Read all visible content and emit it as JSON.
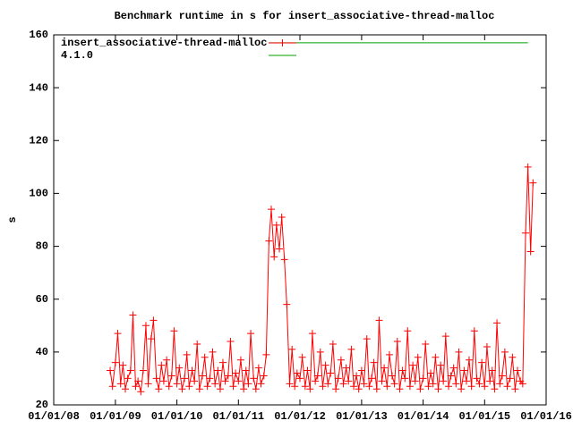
{
  "chart_data": {
    "type": "line",
    "title": "Benchmark runtime in s for insert_associative-thread-malloc",
    "ylabel": "s",
    "xlim": [
      "2008-01-01",
      "2016-01-01"
    ],
    "xticks": [
      {
        "value": "2008-01-01",
        "label": "01/01/08"
      },
      {
        "value": "2009-01-01",
        "label": "01/01/09"
      },
      {
        "value": "2010-01-01",
        "label": "01/01/10"
      },
      {
        "value": "2011-01-01",
        "label": "01/01/11"
      },
      {
        "value": "2012-01-01",
        "label": "01/01/12"
      },
      {
        "value": "2013-01-01",
        "label": "01/01/13"
      },
      {
        "value": "2014-01-01",
        "label": "01/01/14"
      },
      {
        "value": "2015-01-01",
        "label": "01/01/15"
      },
      {
        "value": "2016-01-01",
        "label": "01/01/16"
      }
    ],
    "ylim": [
      20,
      160
    ],
    "yticks": [
      20,
      40,
      60,
      80,
      100,
      120,
      140,
      160
    ],
    "grid": false,
    "legend": "top-left",
    "series": [
      {
        "name": "insert_associative-thread-malloc",
        "color": "#ff0000",
        "markers": true,
        "x": [
          "2008-12-01",
          "2008-12-15",
          "2009-01-01",
          "2009-01-15",
          "2009-02-01",
          "2009-02-15",
          "2009-03-01",
          "2009-03-15",
          "2009-04-01",
          "2009-04-15",
          "2009-05-01",
          "2009-05-15",
          "2009-06-01",
          "2009-06-15",
          "2009-07-01",
          "2009-07-15",
          "2009-08-01",
          "2009-08-15",
          "2009-09-01",
          "2009-09-15",
          "2009-10-01",
          "2009-10-15",
          "2009-11-01",
          "2009-11-15",
          "2009-12-01",
          "2009-12-15",
          "2010-01-01",
          "2010-01-15",
          "2010-02-01",
          "2010-02-15",
          "2010-03-01",
          "2010-03-15",
          "2010-04-01",
          "2010-04-15",
          "2010-05-01",
          "2010-05-15",
          "2010-06-01",
          "2010-06-15",
          "2010-07-01",
          "2010-07-15",
          "2010-08-01",
          "2010-08-15",
          "2010-09-01",
          "2010-09-15",
          "2010-10-01",
          "2010-10-15",
          "2010-11-01",
          "2010-11-15",
          "2010-12-01",
          "2010-12-15",
          "2011-01-01",
          "2011-01-15",
          "2011-02-01",
          "2011-02-15",
          "2011-03-01",
          "2011-03-15",
          "2011-04-01",
          "2011-04-15",
          "2011-05-01",
          "2011-05-15",
          "2011-06-01",
          "2011-06-15",
          "2011-07-01",
          "2011-07-15",
          "2011-08-01",
          "2011-08-15",
          "2011-09-01",
          "2011-09-15",
          "2011-10-01",
          "2011-10-15",
          "2011-11-01",
          "2011-11-15",
          "2011-12-01",
          "2011-12-15",
          "2012-01-01",
          "2012-01-15",
          "2012-02-01",
          "2012-02-15",
          "2012-03-01",
          "2012-03-15",
          "2012-04-01",
          "2012-04-15",
          "2012-05-01",
          "2012-05-15",
          "2012-06-01",
          "2012-06-15",
          "2012-07-01",
          "2012-07-15",
          "2012-08-01",
          "2012-08-15",
          "2012-09-01",
          "2012-09-15",
          "2012-10-01",
          "2012-10-15",
          "2012-11-01",
          "2012-11-15",
          "2012-12-01",
          "2012-12-15",
          "2013-01-01",
          "2013-01-15",
          "2013-02-01",
          "2013-02-15",
          "2013-03-01",
          "2013-03-15",
          "2013-04-01",
          "2013-04-15",
          "2013-05-01",
          "2013-05-15",
          "2013-06-01",
          "2013-06-15",
          "2013-07-01",
          "2013-07-15",
          "2013-08-01",
          "2013-08-15",
          "2013-09-01",
          "2013-09-15",
          "2013-10-01",
          "2013-10-15",
          "2013-11-01",
          "2013-11-15",
          "2013-12-01",
          "2013-12-15",
          "2014-01-01",
          "2014-01-15",
          "2014-02-01",
          "2014-02-15",
          "2014-03-01",
          "2014-03-15",
          "2014-04-01",
          "2014-04-15",
          "2014-05-01",
          "2014-05-15",
          "2014-06-01",
          "2014-06-15",
          "2014-07-01",
          "2014-07-15",
          "2014-08-01",
          "2014-08-15",
          "2014-09-01",
          "2014-09-15",
          "2014-10-01",
          "2014-10-15",
          "2014-11-01",
          "2014-11-15",
          "2014-12-01",
          "2014-12-15",
          "2015-01-01",
          "2015-01-15",
          "2015-02-01",
          "2015-02-15",
          "2015-03-01",
          "2015-03-15",
          "2015-04-01",
          "2015-04-15",
          "2015-05-01",
          "2015-05-15",
          "2015-06-01",
          "2015-06-15",
          "2015-07-01",
          "2015-07-15",
          "2015-08-01",
          "2015-08-15",
          "2015-09-01",
          "2015-09-15",
          "2015-10-01",
          "2015-10-15"
        ],
        "values": [
          33,
          27,
          36,
          47,
          28,
          35,
          26,
          30,
          33,
          54,
          27,
          29,
          25,
          33,
          50,
          28,
          45,
          52,
          30,
          26,
          35,
          29,
          37,
          27,
          31,
          48,
          28,
          34,
          26,
          30,
          39,
          27,
          33,
          29,
          43,
          26,
          31,
          38,
          27,
          30,
          40,
          28,
          33,
          26,
          36,
          29,
          31,
          44,
          27,
          32,
          29,
          37,
          26,
          33,
          28,
          47,
          30,
          26,
          34,
          28,
          31,
          39,
          82,
          94,
          76,
          88,
          79,
          91,
          75,
          58,
          28,
          41,
          27,
          32,
          30,
          38,
          27,
          33,
          26,
          47,
          29,
          31,
          40,
          27,
          35,
          28,
          32,
          43,
          26,
          30,
          37,
          28,
          34,
          29,
          41,
          27,
          31,
          26,
          33,
          28,
          45,
          27,
          30,
          36,
          26,
          52,
          29,
          34,
          27,
          39,
          31,
          28,
          44,
          26,
          33,
          30,
          48,
          27,
          35,
          29,
          38,
          26,
          30,
          43,
          27,
          32,
          28,
          38,
          26,
          35,
          29,
          46,
          27,
          31,
          34,
          28,
          40,
          26,
          33,
          29,
          37,
          27,
          48,
          30,
          28,
          36,
          27,
          42,
          29,
          33,
          26,
          51,
          28,
          31,
          40,
          27,
          30,
          38,
          26,
          33,
          29,
          28,
          85,
          110,
          78,
          104
        ]
      },
      {
        "name": "4.1.0",
        "color": "#00a000",
        "markers": false,
        "x": [
          "2011-07-01",
          "2015-09-15"
        ],
        "values": [
          157,
          157
        ]
      }
    ]
  }
}
